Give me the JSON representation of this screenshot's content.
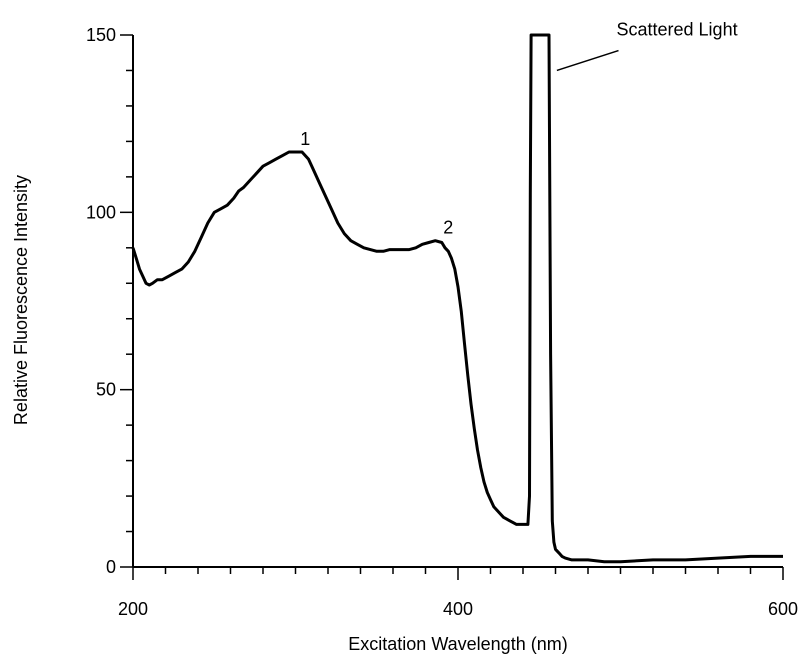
{
  "chart_data": {
    "type": "line",
    "title": "",
    "xlabel": "Excitation Wavelength  (nm)",
    "ylabel": "Relative Fluorescence Intensity",
    "xlim": [
      200,
      600
    ],
    "ylim": [
      0,
      150
    ],
    "grid": false,
    "x_major_ticks": [
      200,
      400,
      600
    ],
    "x_tick_labels": [
      "200",
      "400",
      "600"
    ],
    "x_minor_step": 20,
    "y_major_ticks": [
      0,
      50,
      100,
      150
    ],
    "y_tick_labels": [
      "0",
      "50",
      "100",
      "150"
    ],
    "y_minor_step": 10,
    "series": [
      {
        "x": [
          200,
          202,
          204,
          206,
          208,
          210,
          212,
          215,
          218,
          222,
          226,
          230,
          234,
          238,
          242,
          246,
          250,
          254,
          258,
          262,
          265,
          268,
          272,
          276,
          280,
          284,
          288,
          292,
          296,
          300,
          304,
          306,
          308,
          310,
          312,
          315,
          318,
          322,
          326,
          330,
          334,
          338,
          342,
          346,
          350,
          354,
          358,
          362,
          366,
          370,
          374,
          378,
          382,
          386,
          390,
          392,
          394,
          396,
          398,
          400,
          402,
          404,
          406,
          408,
          410,
          412,
          414,
          416,
          418,
          420,
          422,
          424,
          426,
          428,
          430,
          432,
          434,
          436,
          438,
          440,
          442,
          443,
          444,
          444.5,
          445,
          446,
          447,
          455,
          456,
          457,
          458,
          459,
          460,
          462,
          464,
          466,
          470,
          475,
          480,
          490,
          500,
          520,
          540,
          560,
          580,
          600
        ],
        "y": [
          90,
          87,
          84,
          82,
          80,
          79.5,
          80,
          81,
          81,
          82,
          83,
          84,
          86,
          89,
          93,
          97,
          100,
          101,
          102,
          104,
          106,
          107,
          109,
          111,
          113,
          114,
          115,
          116,
          117,
          117,
          117,
          116,
          115,
          113,
          111,
          108,
          105,
          101,
          97,
          94,
          92,
          91,
          90,
          89.5,
          89,
          89,
          89.5,
          89.5,
          89.5,
          89.5,
          90,
          91,
          91.5,
          92,
          91.5,
          90,
          89,
          87,
          84,
          79,
          72,
          63,
          54,
          46,
          39,
          33,
          28,
          24,
          21,
          19,
          17,
          16,
          15,
          14,
          13.5,
          13,
          12.5,
          12,
          12,
          12,
          12,
          12,
          20,
          105,
          150,
          150,
          150,
          150,
          150,
          60,
          13,
          7,
          5,
          4,
          3,
          2.5,
          2,
          2,
          2,
          1.5,
          1.5,
          2,
          2,
          2.5,
          3,
          3
        ]
      }
    ],
    "annotations": [
      {
        "text": "1",
        "x": 306,
        "y": 119
      },
      {
        "text": "2",
        "x": 394,
        "y": 94
      },
      {
        "text": "Scattered Light",
        "x": 500,
        "y": 149
      }
    ]
  }
}
